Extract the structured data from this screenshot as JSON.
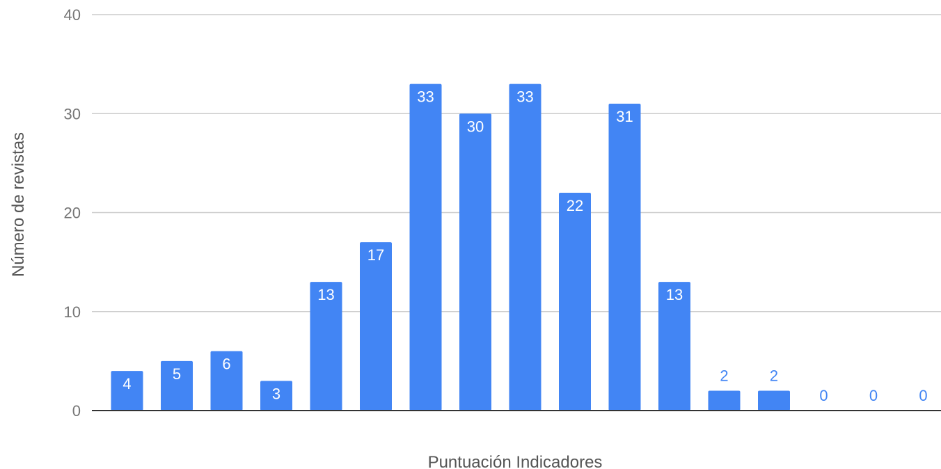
{
  "chart_data": {
    "type": "bar",
    "title": "",
    "xlabel": "Puntuación Indicadores",
    "ylabel": "Número de revistas",
    "ylim": [
      0,
      40
    ],
    "yticks": [
      0,
      10,
      20,
      30,
      40
    ],
    "grid": true,
    "legend": "none",
    "bar_color": "#4285f4",
    "categories": [
      "",
      "",
      "",
      "",
      "",
      "",
      "",
      "",
      "",
      "",
      "",
      "",
      "",
      "",
      "",
      "",
      ""
    ],
    "values": [
      4,
      5,
      6,
      3,
      13,
      17,
      33,
      30,
      33,
      22,
      31,
      13,
      2,
      2,
      0,
      0,
      0
    ]
  }
}
